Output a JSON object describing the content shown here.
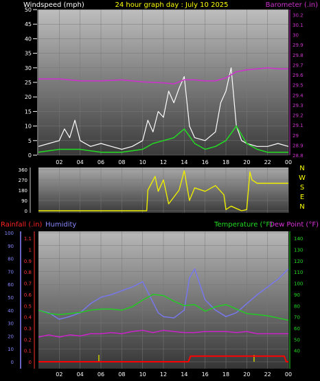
{
  "header": {
    "left": "Windspeed (mph)",
    "center": "24 hour graph day : July 10 2025",
    "right": "Barometer (.in)"
  },
  "bottom_header": {
    "rainfall": "Rainfall (.in)",
    "humidity": "Humidity",
    "temperature": "Temperature (°F)",
    "dewpoint": "Dew Point (°F)"
  },
  "colors": {
    "wind_avg": "#22dd22",
    "wind_gust": "#ffffff",
    "barometer": "#cc33cc",
    "direction": "#eeee00",
    "rain": "#ff0000",
    "humidity": "#7777ee",
    "temperature": "#22cc22",
    "dewpoint": "#cc22cc",
    "tick_yellow": "#cccc00"
  },
  "chart_data": [
    {
      "type": "line",
      "title": "24 hour graph day : July 10 2025",
      "x_ticks": [
        "02",
        "04",
        "06",
        "08",
        "10",
        "12",
        "14",
        "16",
        "18",
        "20",
        "22",
        "00"
      ],
      "y_left": {
        "label": "Windspeed (mph)",
        "ticks": [
          0,
          5,
          10,
          15,
          20,
          25,
          30,
          35,
          40,
          45,
          50
        ],
        "range": [
          0,
          50
        ]
      },
      "y_right": {
        "label": "Barometer (.in)",
        "ticks": [
          "28.8",
          "28.9",
          "29",
          "29.1",
          "29.2",
          "29.3",
          "29.4",
          "29.5",
          "29.6",
          "29.7",
          "29.8",
          "29.9",
          "30",
          "30.1",
          "30.2"
        ],
        "range": [
          28.8,
          30.25
        ]
      },
      "series": [
        {
          "name": "Barometer (.in)",
          "axis": "right",
          "x": [
            0,
            2,
            4,
            6,
            8,
            10,
            12,
            13,
            14,
            15,
            16,
            17,
            18,
            19,
            20,
            21,
            22,
            23,
            24
          ],
          "values": [
            29.56,
            29.56,
            29.54,
            29.54,
            29.55,
            29.53,
            29.52,
            29.51,
            29.55,
            29.55,
            29.54,
            29.54,
            29.57,
            29.63,
            29.65,
            29.66,
            29.67,
            29.66,
            29.66
          ]
        },
        {
          "name": "Windspeed gust",
          "axis": "left",
          "x": [
            0,
            1,
            2,
            2.5,
            3,
            3.5,
            4,
            5,
            6,
            7,
            8,
            9,
            10,
            10.5,
            11,
            11.5,
            12,
            12.5,
            13,
            13.5,
            14,
            14.5,
            15,
            16,
            17,
            17.5,
            18,
            18.5,
            19,
            19.5,
            20,
            21,
            22,
            23,
            24
          ],
          "values": [
            3,
            4,
            5,
            9,
            6,
            12,
            5,
            3,
            4,
            3,
            2,
            3,
            5,
            12,
            8,
            15,
            13,
            22,
            18,
            23,
            27,
            10,
            6,
            5,
            8,
            18,
            22,
            30,
            10,
            5,
            4,
            3,
            3,
            4,
            3
          ]
        },
        {
          "name": "Windspeed average",
          "axis": "left",
          "x": [
            0,
            2,
            4,
            6,
            8,
            10,
            11,
            12,
            13,
            14,
            15,
            16,
            17,
            18,
            19,
            20,
            21,
            22,
            24
          ],
          "values": [
            1,
            2,
            2,
            1,
            1,
            2,
            4,
            5,
            6,
            9,
            4,
            2,
            3,
            5,
            10,
            4,
            2,
            1,
            1
          ]
        }
      ]
    },
    {
      "type": "line",
      "y_left": {
        "ticks": [
          0,
          90,
          180,
          270,
          360
        ],
        "range": [
          0,
          360
        ]
      },
      "y_right": {
        "ticks": [
          "N",
          "W",
          "S",
          "E",
          "N"
        ]
      },
      "series": [
        {
          "name": "Wind direction",
          "x": [
            0,
            10.4,
            10.5,
            11.2,
            11.5,
            12,
            12.5,
            13.5,
            14,
            14.5,
            15,
            16,
            17,
            17.8,
            18,
            18.5,
            19,
            19.5,
            20,
            20.3,
            20.5,
            21,
            24
          ],
          "values": [
            0,
            0,
            180,
            300,
            170,
            270,
            60,
            180,
            350,
            90,
            200,
            170,
            220,
            140,
            10,
            40,
            20,
            0,
            10,
            340,
            270,
            240,
            240
          ]
        }
      ]
    },
    {
      "type": "line",
      "y_left_rain": {
        "label": "Rainfall (.in)",
        "ticks": [
          "0",
          "0.1",
          "0.2",
          "0.3",
          "0.4",
          "0.5",
          "0.6",
          "0.7",
          "0.8",
          "0.9",
          "1",
          "1.1"
        ],
        "range": [
          0,
          1.15
        ]
      },
      "y_left_humidity": {
        "label": "Humidity",
        "ticks": [
          0,
          10,
          20,
          30,
          40,
          50,
          60,
          70,
          80,
          90,
          100
        ],
        "range": [
          0,
          100
        ]
      },
      "y_right": {
        "label": "Temperature (°F)",
        "ticks": [
          40,
          50,
          60,
          70,
          80,
          90,
          100,
          110,
          120,
          130,
          140
        ],
        "range": [
          30,
          145
        ]
      },
      "series": [
        {
          "name": "Humidity",
          "axis": "humidity",
          "x": [
            0,
            1,
            2,
            3,
            4,
            5,
            6,
            7,
            8,
            9,
            10,
            11,
            11.5,
            12,
            13,
            14,
            14.5,
            15,
            15.5,
            16,
            17,
            18,
            19,
            20,
            21,
            22,
            23,
            24
          ],
          "values": [
            40,
            38,
            33,
            35,
            38,
            45,
            50,
            52,
            55,
            58,
            62,
            46,
            38,
            35,
            34,
            40,
            65,
            72,
            60,
            48,
            40,
            35,
            38,
            45,
            52,
            58,
            64,
            72
          ]
        },
        {
          "name": "Temperature (°F)",
          "axis": "right",
          "x": [
            0,
            1,
            2,
            3,
            4,
            5,
            6,
            7,
            8,
            9,
            10,
            11,
            12,
            13,
            14,
            15,
            16,
            17,
            18,
            19,
            20,
            21,
            22,
            23,
            24
          ],
          "values": [
            76,
            73,
            72,
            73,
            74,
            76,
            77,
            77,
            76,
            79,
            85,
            90,
            89,
            84,
            80,
            81,
            75,
            79,
            81,
            77,
            73,
            72,
            71,
            69,
            67
          ]
        },
        {
          "name": "Dew Point (°F)",
          "axis": "right",
          "x": [
            0,
            1,
            2,
            3,
            4,
            5,
            6,
            7,
            8,
            9,
            10,
            11,
            12,
            13,
            14,
            15,
            16,
            17,
            18,
            19,
            20,
            21,
            22,
            23,
            24
          ],
          "values": [
            52,
            54,
            52,
            54,
            53,
            55,
            55,
            56,
            55,
            57,
            58,
            56,
            58,
            57,
            56,
            56,
            57,
            57,
            57,
            56,
            57,
            55,
            55,
            55,
            55
          ]
        },
        {
          "name": "Rainfall (.in)",
          "axis": "rain",
          "x": [
            0,
            14.4,
            14.6,
            23.6,
            23.8,
            24
          ],
          "values": [
            0,
            0,
            0.05,
            0.05,
            0,
            0
          ]
        }
      ]
    }
  ]
}
